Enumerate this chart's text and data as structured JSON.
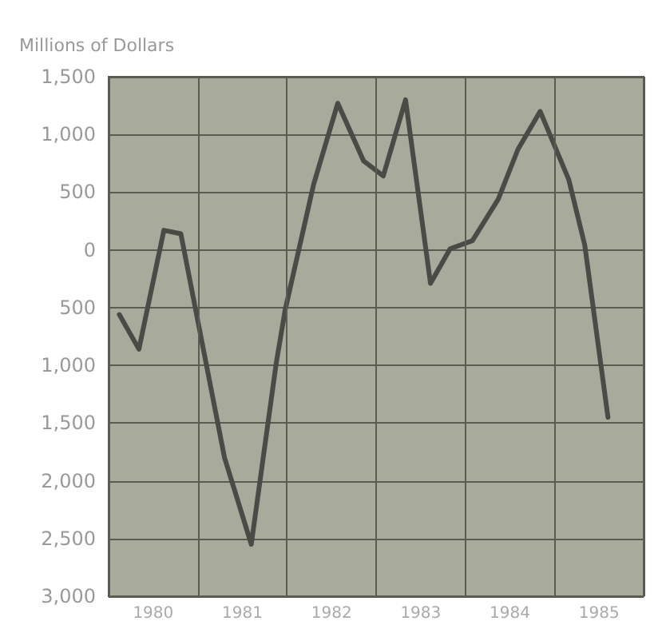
{
  "chart_data": {
    "type": "line",
    "ylabel": "Millions of Dollars",
    "x": [
      1980.12,
      1980.34,
      1980.62,
      1980.81,
      1981.3,
      1981.6,
      1981.88,
      1981.98,
      1982.3,
      1982.57,
      1982.86,
      1983.08,
      1983.33,
      1983.61,
      1983.83,
      1984.08,
      1984.37,
      1984.59,
      1984.84,
      1985.16,
      1985.34,
      1985.6
    ],
    "series": [
      {
        "color": "#4a4a46",
        "values": [
          -560,
          -860,
          170,
          140,
          -1800,
          -2550,
          -980,
          -520,
          570,
          1270,
          770,
          640,
          1300,
          -290,
          10,
          80,
          440,
          870,
          1200,
          610,
          40,
          -1450
        ]
      }
    ],
    "xlim": [
      1980,
      1986
    ],
    "xticks": [
      {
        "value": 1980,
        "label": null
      },
      {
        "value": 1980.5,
        "label": "1980"
      },
      {
        "value": 1981,
        "label": null
      },
      {
        "value": 1981.5,
        "label": "1981"
      },
      {
        "value": 1982,
        "label": null
      },
      {
        "value": 1982.5,
        "label": "1982"
      },
      {
        "value": 1983,
        "label": null
      },
      {
        "value": 1983.5,
        "label": "1983"
      },
      {
        "value": 1984,
        "label": null
      },
      {
        "value": 1984.5,
        "label": "1984"
      },
      {
        "value": 1985,
        "label": null
      },
      {
        "value": 1985.5,
        "label": "1985"
      },
      {
        "value": 1986,
        "label": null
      }
    ],
    "ylim": [
      -3000,
      1500
    ],
    "yticks": [
      {
        "value": -3000,
        "label": "3,000"
      },
      {
        "value": -2500,
        "label": "2,500"
      },
      {
        "value": -2000,
        "label": "2,000"
      },
      {
        "value": -1500,
        "label": "1,500"
      },
      {
        "value": -1000,
        "label": "1,000"
      },
      {
        "value": -500,
        "label": "500"
      },
      {
        "value": 0,
        "label": "0"
      },
      {
        "value": 500,
        "label": "500"
      },
      {
        "value": 1000,
        "label": "1,000"
      },
      {
        "value": 1500,
        "label": "1,500"
      }
    ],
    "grid": true,
    "line_style": "solid"
  }
}
